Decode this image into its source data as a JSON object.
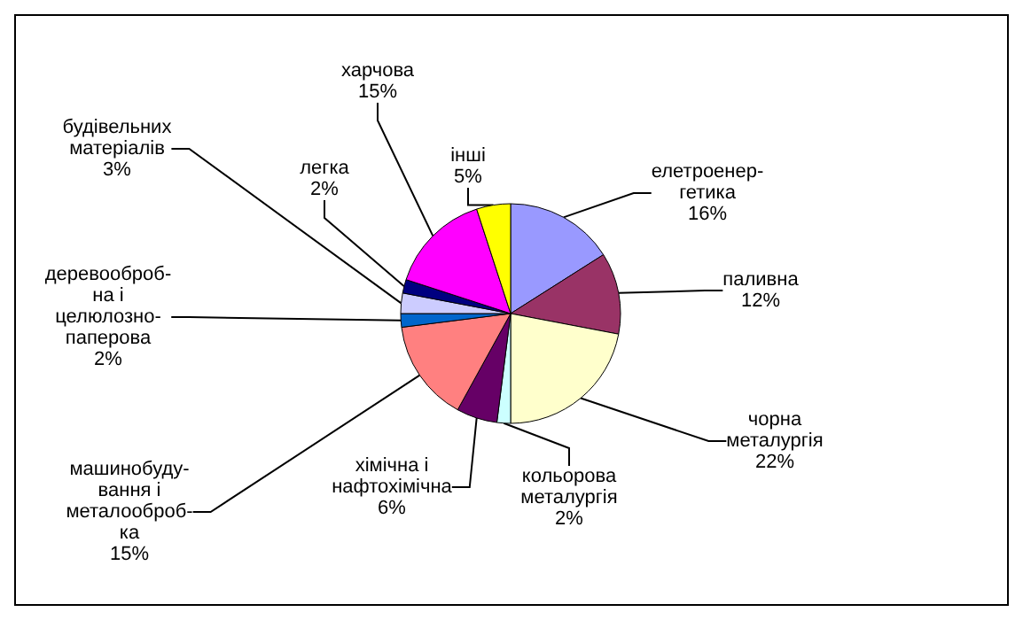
{
  "chart_data": {
    "type": "pie",
    "categories": [
      "елетроенер-\nгетика",
      "паливна",
      "чорна\nметалургія",
      "кольорова\nметалургія",
      "хімічна і\nнафтохімічна",
      "машинобуду-\nвання і\nметалооброб-\nка",
      "деревооброб-\nна і\nцелюлозно-\nпаперова",
      "будівельних\nматеріалів",
      "легка",
      "харчова",
      "інші"
    ],
    "values": [
      16,
      12,
      22,
      2,
      6,
      15,
      2,
      3,
      2,
      15,
      5
    ],
    "value_labels": [
      "16%",
      "12%",
      "22%",
      "2%",
      "6%",
      "15%",
      "2%",
      "3%",
      "2%",
      "15%",
      "5%"
    ],
    "colors": [
      "#9999ff",
      "#993366",
      "#ffffcc",
      "#ccffff",
      "#660066",
      "#ff8080",
      "#0066cc",
      "#ccccff",
      "#000080",
      "#ff00ff",
      "#ffff00"
    ],
    "legend": false
  }
}
